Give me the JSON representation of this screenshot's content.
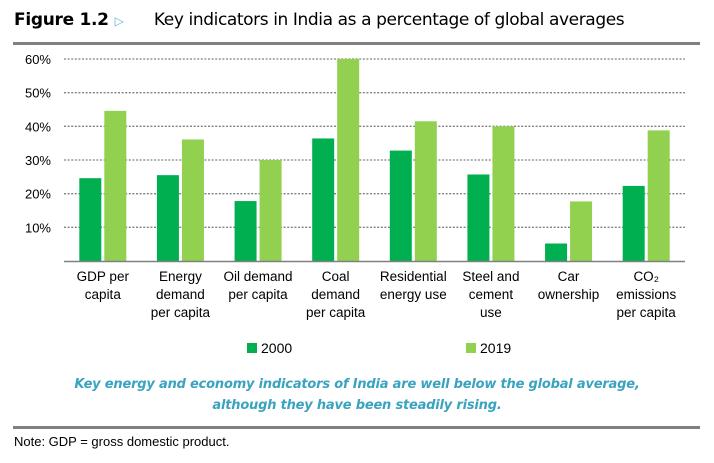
{
  "figure": {
    "number": "Figure 1.2",
    "arrow_icon": "triangle-right-icon",
    "title": "Key indicators in India as a percentage of global averages"
  },
  "caption": {
    "line1": "Key energy and economy indicators of India are well below the global average,",
    "line2": "although they have been steadily rising."
  },
  "note": "Note: GDP = gross domestic product.",
  "colors": {
    "series_2000": "#00b050",
    "series_2019": "#92d050",
    "gridline": "#808080",
    "axis": "#808080",
    "rule": "#808080",
    "caption": "#3aa3bf",
    "arrow": "#5bb4d6"
  },
  "chart_data": {
    "type": "bar",
    "title": "Key indicators in India as a percentage of global averages",
    "xlabel": "",
    "ylabel": "",
    "ylim": [
      0,
      60
    ],
    "yticks": [
      10,
      20,
      30,
      40,
      50,
      60
    ],
    "ytick_labels": [
      "10%",
      "20%",
      "30%",
      "40%",
      "50%",
      "60%"
    ],
    "grid": true,
    "legend_position": "bottom",
    "categories": [
      [
        "GDP per",
        "capita"
      ],
      [
        "Energy",
        "demand",
        "per capita"
      ],
      [
        "Oil demand",
        "per capita"
      ],
      [
        "Coal",
        "demand",
        "per capita"
      ],
      [
        "Residential",
        "energy use"
      ],
      [
        "Steel and",
        "cement",
        "use"
      ],
      [
        "Car",
        "ownership"
      ],
      [
        "CO₂",
        "emissions",
        "per capita"
      ]
    ],
    "series": [
      {
        "name": "2000",
        "values": [
          24.6,
          25.5,
          17.8,
          36.4,
          32.8,
          25.7,
          5.2,
          22.3
        ]
      },
      {
        "name": "2019",
        "values": [
          44.6,
          36.1,
          30.0,
          60.0,
          41.5,
          40.0,
          17.7,
          38.8
        ]
      }
    ]
  }
}
